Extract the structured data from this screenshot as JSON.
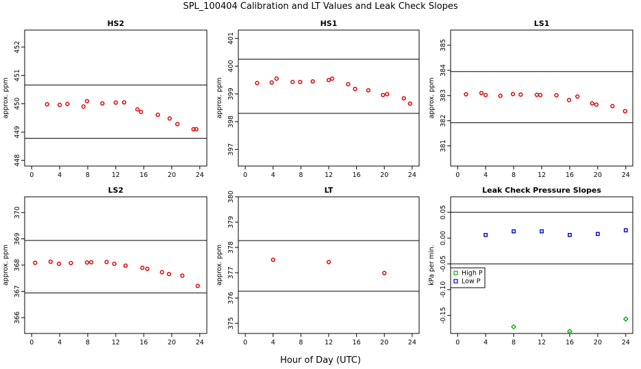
{
  "title": "SPL_100404  Calibration and LT Values and Leak Check Slopes",
  "xlabel": "Hour of Day (UTC)",
  "colors": {
    "primary": "#dd0000",
    "high_p": "#00aa00",
    "low_p": "#0000cc",
    "frame": "#000000"
  },
  "chart_data": [
    {
      "type": "scatter",
      "title": "HS2",
      "ylabel": "approx. ppm",
      "xlim": [
        -1,
        25
      ],
      "ylim": [
        447.8,
        452.6
      ],
      "xticks": [
        "0",
        "4",
        "8",
        "12",
        "16",
        "20",
        "24"
      ],
      "yticks": [
        "448",
        "449",
        "450",
        "451",
        "452"
      ],
      "hlines": [
        450.66,
        448.78
      ],
      "grid": false,
      "series": [
        {
          "x": [
            2.2,
            4,
            5.1,
            7.4,
            7.9,
            10.1,
            12,
            13.2,
            15.1,
            15.6,
            18,
            19.7,
            20.8,
            23.1,
            23.5
          ],
          "y": [
            449.98,
            449.96,
            449.99,
            449.9,
            450.09,
            450.01,
            450.04,
            450.05,
            449.8,
            449.71,
            449.61,
            449.48,
            449.28,
            449.1,
            449.1
          ]
        }
      ]
    },
    {
      "type": "scatter",
      "title": "HS1",
      "ylabel": "approx. ppm",
      "xlim": [
        -1,
        25
      ],
      "ylim": [
        396.4,
        401.3
      ],
      "xticks": [
        "0",
        "4",
        "8",
        "12",
        "16",
        "20",
        "24"
      ],
      "yticks": [
        "397",
        "398",
        "399",
        "400",
        "401"
      ],
      "hlines": [
        400.25,
        398.3
      ],
      "grid": false,
      "series": [
        {
          "x": [
            1.7,
            3.8,
            4.5,
            6.8,
            7.9,
            9.7,
            12,
            12.5,
            14.8,
            15.8,
            17.7,
            19.8,
            20.4,
            22.8,
            23.7
          ],
          "y": [
            399.39,
            399.41,
            399.55,
            399.43,
            399.43,
            399.45,
            399.5,
            399.55,
            399.35,
            399.18,
            399.13,
            398.96,
            398.99,
            398.84,
            398.65
          ]
        }
      ]
    },
    {
      "type": "scatter",
      "title": "LS1",
      "ylabel": "approx. ppm",
      "xlim": [
        -1,
        25
      ],
      "ylim": [
        380.2,
        385.6
      ],
      "xticks": [
        "0",
        "4",
        "8",
        "12",
        "16",
        "20",
        "24"
      ],
      "yticks": [
        "381",
        "382",
        "383",
        "384",
        "385"
      ],
      "hlines": [
        383.95,
        381.92
      ],
      "grid": false,
      "series": [
        {
          "x": [
            1.2,
            3.4,
            4,
            6.1,
            7.9,
            9,
            11.3,
            11.8,
            14.1,
            15.9,
            17.1,
            19.2,
            19.8,
            22.1,
            23.9
          ],
          "y": [
            383.05,
            383.1,
            383.02,
            382.99,
            383.06,
            383.04,
            383.03,
            383.02,
            383.01,
            382.82,
            382.96,
            382.69,
            382.64,
            382.58,
            382.38
          ]
        }
      ]
    },
    {
      "type": "scatter",
      "title": "LS2",
      "ylabel": "approx. ppm",
      "xlim": [
        -1,
        25
      ],
      "ylim": [
        365.4,
        370.6
      ],
      "xticks": [
        "0",
        "4",
        "8",
        "12",
        "16",
        "20",
        "24"
      ],
      "yticks": [
        "366",
        "367",
        "368",
        "369",
        "370"
      ],
      "hlines": [
        368.94,
        366.94
      ],
      "grid": false,
      "series": [
        {
          "x": [
            0.5,
            2.7,
            3.9,
            5.6,
            7.9,
            8.5,
            10.7,
            11.8,
            13.4,
            15.8,
            16.5,
            18.6,
            19.6,
            21.5,
            23.7
          ],
          "y": [
            368.09,
            368.13,
            368.05,
            368.08,
            368.1,
            368.11,
            368.12,
            368.05,
            367.98,
            367.9,
            367.86,
            367.73,
            367.66,
            367.6,
            367.21
          ]
        }
      ]
    },
    {
      "type": "scatter",
      "title": "LT",
      "ylabel": "approx. ppm",
      "xlim": [
        -1,
        25
      ],
      "ylim": [
        374.6,
        380.0
      ],
      "xticks": [
        "0",
        "4",
        "8",
        "12",
        "16",
        "20",
        "24"
      ],
      "yticks": [
        "375",
        "376",
        "377",
        "378",
        "379",
        "380"
      ],
      "hlines": [
        378.27,
        376.27
      ],
      "grid": false,
      "series": [
        {
          "x": [
            4,
            12,
            20
          ],
          "y": [
            377.51,
            377.42,
            376.99
          ]
        }
      ]
    },
    {
      "type": "scatter",
      "title": "Leak Check Pressure Slopes",
      "ylabel": "kPa per min.",
      "xlim": [
        -1,
        25
      ],
      "ylim": [
        -0.185,
        0.08
      ],
      "xticks": [
        "0",
        "4",
        "8",
        "12",
        "16",
        "20",
        "24"
      ],
      "yticks": [
        "-0.15",
        "-0.10",
        "-0.05",
        "0.00",
        "0.05"
      ],
      "hlines": [
        0.05,
        -0.05
      ],
      "grid": false,
      "legend": {
        "position": "left-center",
        "entries": [
          "High P",
          "Low P"
        ]
      },
      "series": [
        {
          "name": "High P",
          "x": [
            8,
            16,
            24
          ],
          "y": [
            -0.172,
            -0.181,
            -0.157
          ]
        },
        {
          "name": "Low P",
          "x": [
            4,
            8,
            12,
            16,
            20,
            24
          ],
          "y": [
            0.006,
            0.013,
            0.013,
            0.006,
            0.008,
            0.015
          ]
        }
      ]
    }
  ]
}
